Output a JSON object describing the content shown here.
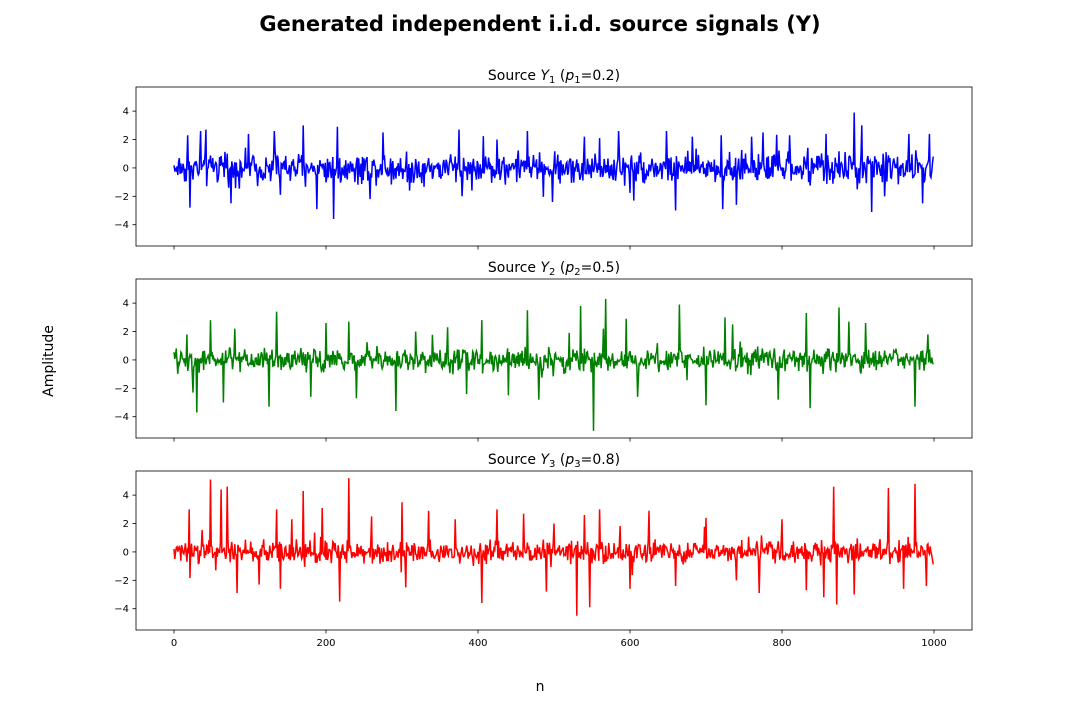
{
  "chart_data": {
    "type": "line",
    "title": "Generated independent i.i.d. source signals (Y)",
    "xlabel": "n",
    "ylabel": "Amplitude",
    "xlim": [
      -50,
      1050
    ],
    "ylim": [
      -5.5,
      5.7
    ],
    "xticks": [
      0,
      200,
      400,
      600,
      800,
      1000
    ],
    "yticks": [
      -4,
      -2,
      0,
      2,
      4
    ],
    "grid": false,
    "layout": "3 stacked subplots, shared x axis",
    "n_samples": 1000,
    "subplots": [
      {
        "title_prefix": "Source ",
        "var": "Y",
        "sub": "1",
        "param": "p",
        "param_sub": "1",
        "param_value": "=0.2",
        "color": "#0000ff",
        "spikes": [
          [
            5,
            -0.5
          ],
          [
            18,
            2.3
          ],
          [
            21,
            -2.8
          ],
          [
            35,
            2.6
          ],
          [
            42,
            2.7
          ],
          [
            75,
            -2.5
          ],
          [
            98,
            2.4
          ],
          [
            132,
            2.6
          ],
          [
            140,
            -1.9
          ],
          [
            170,
            3.0
          ],
          [
            188,
            -2.9
          ],
          [
            210,
            -3.6
          ],
          [
            215,
            2.9
          ],
          [
            258,
            -2.2
          ],
          [
            275,
            2.5
          ],
          [
            310,
            -1.6
          ],
          [
            375,
            2.7
          ],
          [
            425,
            2.0
          ],
          [
            465,
            2.6
          ],
          [
            498,
            -2.4
          ],
          [
            540,
            2.2
          ],
          [
            560,
            2.1
          ],
          [
            585,
            2.6
          ],
          [
            605,
            -2.3
          ],
          [
            648,
            2.6
          ],
          [
            660,
            -3.0
          ],
          [
            682,
            2.2
          ],
          [
            720,
            2.3
          ],
          [
            722,
            -2.9
          ],
          [
            740,
            -2.6
          ],
          [
            760,
            2.2
          ],
          [
            775,
            2.5
          ],
          [
            810,
            2.3
          ],
          [
            858,
            2.4
          ],
          [
            895,
            3.9
          ],
          [
            905,
            3.0
          ],
          [
            918,
            -3.1
          ],
          [
            935,
            -2.0
          ],
          [
            967,
            2.4
          ],
          [
            985,
            -2.5
          ],
          [
            994,
            2.4
          ]
        ]
      },
      {
        "title_prefix": "Source ",
        "var": "Y",
        "sub": "2",
        "param": "p",
        "param_sub": "2",
        "param_value": "=0.5",
        "color": "#008000",
        "spikes": [
          [
            17,
            1.8
          ],
          [
            25,
            -2.3
          ],
          [
            30,
            -3.7
          ],
          [
            48,
            2.8
          ],
          [
            65,
            -3.0
          ],
          [
            80,
            2.2
          ],
          [
            125,
            -3.3
          ],
          [
            135,
            3.4
          ],
          [
            180,
            -2.6
          ],
          [
            200,
            2.6
          ],
          [
            230,
            2.7
          ],
          [
            240,
            -2.7
          ],
          [
            292,
            -3.6
          ],
          [
            318,
            2.0
          ],
          [
            360,
            2.3
          ],
          [
            385,
            -2.4
          ],
          [
            405,
            2.8
          ],
          [
            440,
            -2.5
          ],
          [
            465,
            3.5
          ],
          [
            480,
            -2.8
          ],
          [
            520,
            1.9
          ],
          [
            535,
            3.8
          ],
          [
            552,
            -5.0
          ],
          [
            565,
            2.2
          ],
          [
            568,
            4.3
          ],
          [
            595,
            2.9
          ],
          [
            610,
            -2.6
          ],
          [
            665,
            3.9
          ],
          [
            700,
            -3.2
          ],
          [
            725,
            3.0
          ],
          [
            735,
            2.5
          ],
          [
            795,
            -2.8
          ],
          [
            832,
            3.3
          ],
          [
            837,
            -3.4
          ],
          [
            875,
            3.7
          ],
          [
            888,
            2.7
          ],
          [
            910,
            2.6
          ],
          [
            975,
            -3.3
          ],
          [
            992,
            1.8
          ]
        ]
      },
      {
        "title_prefix": "Source ",
        "var": "Y",
        "sub": "3",
        "param": "p",
        "param_sub": "3",
        "param_value": "=0.8",
        "color": "#ff0000",
        "spikes": [
          [
            20,
            3.0
          ],
          [
            48,
            5.1
          ],
          [
            55,
            -1.3
          ],
          [
            62,
            4.4
          ],
          [
            70,
            4.6
          ],
          [
            83,
            -2.9
          ],
          [
            112,
            -2.3
          ],
          [
            135,
            3.0
          ],
          [
            140,
            -2.6
          ],
          [
            155,
            2.3
          ],
          [
            170,
            4.3
          ],
          [
            195,
            3.1
          ],
          [
            218,
            -3.5
          ],
          [
            230,
            5.2
          ],
          [
            260,
            2.5
          ],
          [
            300,
            3.5
          ],
          [
            305,
            -2.5
          ],
          [
            335,
            2.9
          ],
          [
            370,
            2.3
          ],
          [
            405,
            -3.6
          ],
          [
            425,
            3.0
          ],
          [
            460,
            2.7
          ],
          [
            490,
            -2.8
          ],
          [
            500,
            2.0
          ],
          [
            530,
            -4.5
          ],
          [
            540,
            2.6
          ],
          [
            547,
            -3.9
          ],
          [
            560,
            3.0
          ],
          [
            600,
            -2.6
          ],
          [
            625,
            2.9
          ],
          [
            660,
            -2.4
          ],
          [
            700,
            2.4
          ],
          [
            740,
            -2.0
          ],
          [
            770,
            -2.9
          ],
          [
            800,
            2.3
          ],
          [
            832,
            -2.7
          ],
          [
            855,
            -3.2
          ],
          [
            868,
            4.6
          ],
          [
            872,
            -3.7
          ],
          [
            895,
            -3.0
          ],
          [
            940,
            4.5
          ],
          [
            960,
            -2.6
          ],
          [
            975,
            4.8
          ],
          [
            990,
            -2.4
          ]
        ]
      }
    ]
  }
}
